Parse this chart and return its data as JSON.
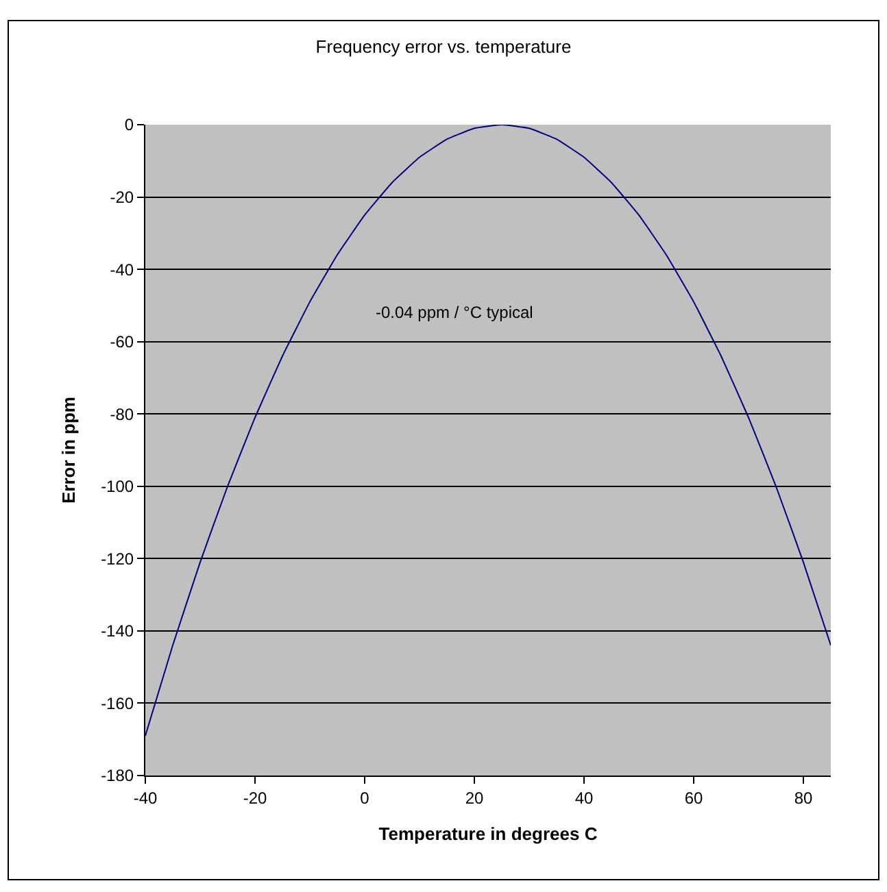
{
  "chart_data": {
    "type": "line",
    "title": "Frequency error vs. temperature",
    "xlabel": "Temperature in degrees C",
    "ylabel": "Error in ppm",
    "x": [
      -40,
      -35,
      -30,
      -25,
      -20,
      -15,
      -10,
      -5,
      0,
      5,
      10,
      15,
      20,
      25,
      30,
      35,
      40,
      45,
      50,
      55,
      60,
      65,
      70,
      75,
      80,
      85
    ],
    "series": [
      {
        "color": "#00007f",
        "values": [
          -169,
          -144,
          -121,
          -100,
          -81,
          -64,
          -49,
          -36,
          -25,
          -16,
          -9,
          -4,
          -1,
          0,
          -1,
          -4,
          -9,
          -16,
          -25,
          -36,
          -49,
          -64,
          -81,
          -100,
          -121,
          -144
        ]
      }
    ],
    "xlim": [
      -40,
      85
    ],
    "xticks": [
      -40,
      -20,
      0,
      20,
      40,
      60,
      80
    ],
    "ylim": [
      -180,
      0
    ],
    "yticks": [
      -180,
      -160,
      -140,
      -120,
      -100,
      -80,
      -60,
      -40,
      -20,
      0
    ],
    "annotations": [
      "-0.04 ppm / °C typical"
    ],
    "grid": "y",
    "marker": "none",
    "line_style": "solid"
  }
}
